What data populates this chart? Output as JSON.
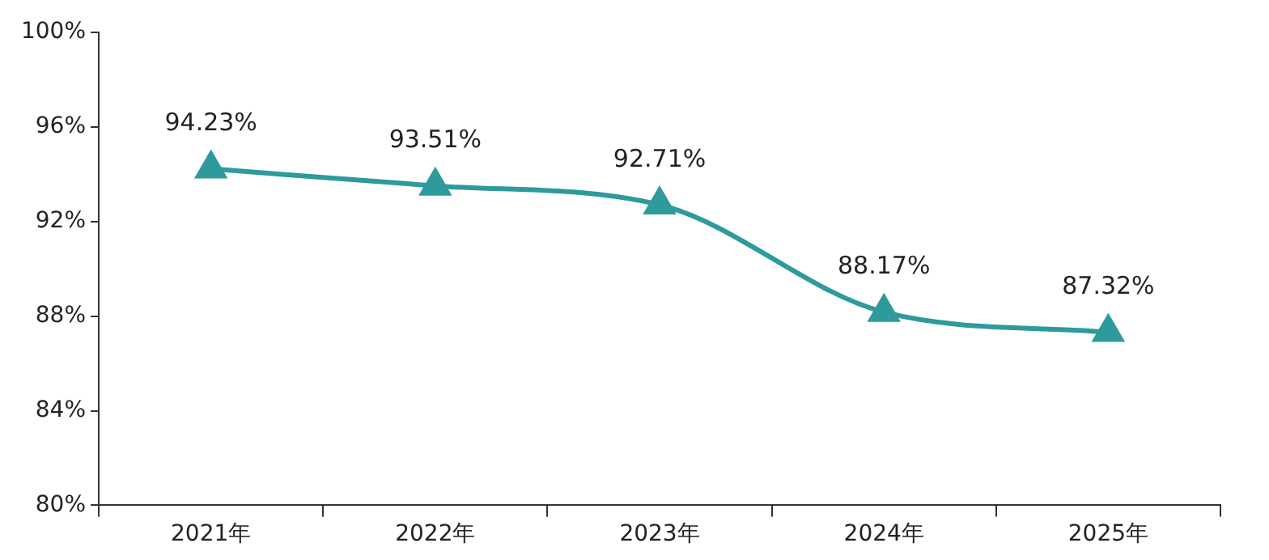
{
  "chart_data": {
    "type": "line",
    "categories": [
      "2021年",
      "2022年",
      "2023年",
      "2024年",
      "2025年"
    ],
    "series": [
      {
        "color": "#2e9a9c",
        "values": [
          94.23,
          93.51,
          92.71,
          88.17,
          87.32
        ],
        "value_labels": [
          "94.23%",
          "93.51%",
          "92.71%",
          "88.17%",
          "87.32%"
        ]
      }
    ],
    "ylim": [
      80,
      100
    ],
    "yticks": [
      {
        "value": 80,
        "label": "80%"
      },
      {
        "value": 84,
        "label": "84%"
      },
      {
        "value": 88,
        "label": "88%"
      },
      {
        "value": 92,
        "label": "92%"
      },
      {
        "value": 96,
        "label": "96%"
      },
      {
        "value": 100,
        "label": "100%"
      }
    ],
    "grid": false,
    "legend": false,
    "marker": "triangle",
    "line_style": "solid"
  }
}
